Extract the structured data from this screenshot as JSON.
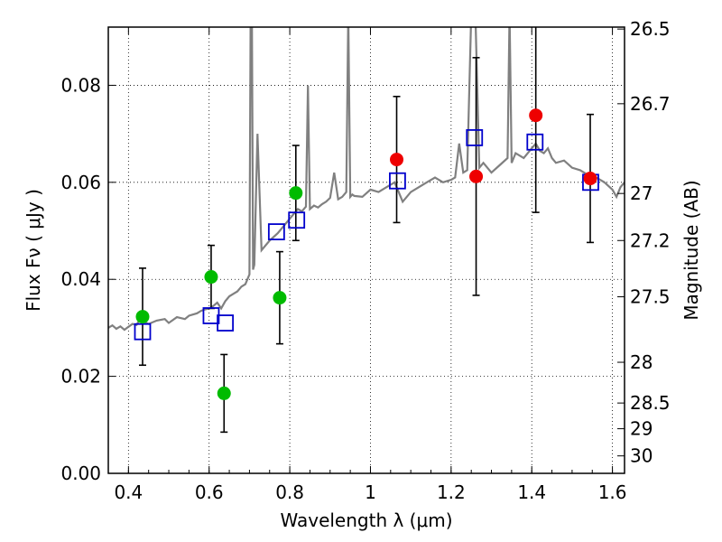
{
  "chart_data": {
    "type": "scatter",
    "xlabel": "Wavelength  λ (μm)",
    "ylabel": "Flux  Fν  ( μJy )",
    "ylabel_right": "Magnitude (AB)",
    "xlim": [
      0.35,
      1.63
    ],
    "ylim": [
      0.0,
      0.092
    ],
    "grid": true,
    "x_ticks": [
      0.4,
      0.6,
      0.8,
      1.0,
      1.2,
      1.4,
      1.6
    ],
    "x_tick_labels": [
      "0.4",
      "0.6",
      "0.8",
      "1",
      "1.2",
      "1.4",
      "1.6"
    ],
    "y_ticks": [
      0.0,
      0.02,
      0.04,
      0.06,
      0.08
    ],
    "y_tick_labels": [
      "0.00",
      "0.02",
      "0.04",
      "0.06",
      "0.08"
    ],
    "right_ticks": [
      {
        "flux": 0.0916,
        "label": "26.5"
      },
      {
        "flux": 0.0762,
        "label": "26.7"
      },
      {
        "flux": 0.0577,
        "label": "27"
      },
      {
        "flux": 0.048,
        "label": "27.2"
      },
      {
        "flux": 0.0364,
        "label": "27.5"
      },
      {
        "flux": 0.0229,
        "label": "28"
      },
      {
        "flux": 0.0145,
        "label": "28.5"
      },
      {
        "flux": 0.0092,
        "label": "29"
      },
      {
        "flux": 0.0036,
        "label": "30"
      }
    ],
    "colors": {
      "template": "#808080",
      "model_squares": "#0000cc",
      "optical_points": "#00bb00",
      "nir_points": "#ee0000",
      "errorbars": "#000000"
    },
    "template_spectrum": {
      "x": [
        0.35,
        0.36,
        0.37,
        0.38,
        0.39,
        0.4,
        0.41,
        0.42,
        0.43,
        0.44,
        0.45,
        0.47,
        0.49,
        0.5,
        0.52,
        0.54,
        0.55,
        0.57,
        0.58,
        0.59,
        0.6,
        0.61,
        0.62,
        0.63,
        0.64,
        0.65,
        0.66,
        0.67,
        0.68,
        0.69,
        0.7,
        0.703,
        0.706,
        0.709,
        0.712,
        0.72,
        0.73,
        0.75,
        0.77,
        0.78,
        0.79,
        0.8,
        0.81,
        0.82,
        0.83,
        0.84,
        0.845,
        0.85,
        0.86,
        0.87,
        0.88,
        0.89,
        0.9,
        0.91,
        0.92,
        0.93,
        0.94,
        0.945,
        0.95,
        0.955,
        0.96,
        0.98,
        1.0,
        1.02,
        1.04,
        1.06,
        1.08,
        1.1,
        1.12,
        1.14,
        1.16,
        1.18,
        1.2,
        1.21,
        1.22,
        1.23,
        1.24,
        1.25,
        1.26,
        1.27,
        1.28,
        1.3,
        1.32,
        1.34,
        1.345,
        1.35,
        1.355,
        1.36,
        1.38,
        1.4,
        1.41,
        1.42,
        1.43,
        1.44,
        1.45,
        1.46,
        1.48,
        1.5,
        1.52,
        1.54,
        1.56,
        1.58,
        1.6,
        1.61,
        1.62,
        1.63
      ],
      "y": [
        0.03,
        0.0305,
        0.0298,
        0.0303,
        0.0296,
        0.0302,
        0.0308,
        0.0306,
        0.032,
        0.0312,
        0.0308,
        0.0315,
        0.0318,
        0.031,
        0.0322,
        0.0318,
        0.0325,
        0.033,
        0.0335,
        0.0338,
        0.034,
        0.0345,
        0.0352,
        0.034,
        0.0355,
        0.0365,
        0.037,
        0.0375,
        0.0385,
        0.039,
        0.041,
        0.095,
        0.095,
        0.042,
        0.043,
        0.07,
        0.046,
        0.048,
        0.0495,
        0.0505,
        0.0515,
        0.0525,
        0.0535,
        0.0545,
        0.054,
        0.055,
        0.08,
        0.0545,
        0.0552,
        0.0548,
        0.0555,
        0.056,
        0.0568,
        0.062,
        0.0565,
        0.057,
        0.058,
        0.095,
        0.057,
        0.0575,
        0.0572,
        0.057,
        0.0585,
        0.058,
        0.059,
        0.06,
        0.056,
        0.058,
        0.059,
        0.06,
        0.061,
        0.06,
        0.0605,
        0.061,
        0.068,
        0.062,
        0.0625,
        0.095,
        0.095,
        0.063,
        0.064,
        0.062,
        0.0635,
        0.065,
        0.095,
        0.064,
        0.065,
        0.066,
        0.065,
        0.067,
        0.068,
        0.0665,
        0.066,
        0.067,
        0.065,
        0.064,
        0.0645,
        0.063,
        0.0625,
        0.0615,
        0.061,
        0.06,
        0.0585,
        0.057,
        0.059,
        0.06
      ]
    },
    "series": [
      {
        "marker": "open-square",
        "color": "#0000cc",
        "points": [
          [
            0.435,
            0.0292
          ],
          [
            0.605,
            0.0325
          ],
          [
            0.64,
            0.031
          ],
          [
            0.767,
            0.0498
          ],
          [
            0.817,
            0.0522
          ],
          [
            1.067,
            0.0603
          ],
          [
            1.258,
            0.0692
          ],
          [
            1.408,
            0.0683
          ],
          [
            1.546,
            0.06
          ]
        ]
      },
      {
        "marker": "filled-circle",
        "color": "#00bb00",
        "points": [
          {
            "x": 0.435,
            "y": 0.0323,
            "err_lo": 0.01,
            "err_hi": 0.01
          },
          {
            "x": 0.605,
            "y": 0.0405,
            "err_lo": 0.0065,
            "err_hi": 0.0065
          },
          {
            "x": 0.637,
            "y": 0.0165,
            "err_lo": 0.008,
            "err_hi": 0.008
          },
          {
            "x": 0.775,
            "y": 0.0362,
            "err_lo": 0.0095,
            "err_hi": 0.0095
          },
          {
            "x": 0.815,
            "y": 0.0578,
            "err_lo": 0.0098,
            "err_hi": 0.0098
          }
        ]
      },
      {
        "marker": "filled-circle",
        "color": "#ee0000",
        "points": [
          {
            "x": 1.065,
            "y": 0.0647,
            "err_lo": 0.013,
            "err_hi": 0.013
          },
          {
            "x": 1.262,
            "y": 0.0612,
            "err_lo": 0.0245,
            "err_hi": 0.0245
          },
          {
            "x": 1.41,
            "y": 0.0738,
            "err_lo": 0.02,
            "err_hi": 0.02
          },
          {
            "x": 1.545,
            "y": 0.0608,
            "err_lo": 0.0132,
            "err_hi": 0.0132
          }
        ]
      }
    ]
  }
}
